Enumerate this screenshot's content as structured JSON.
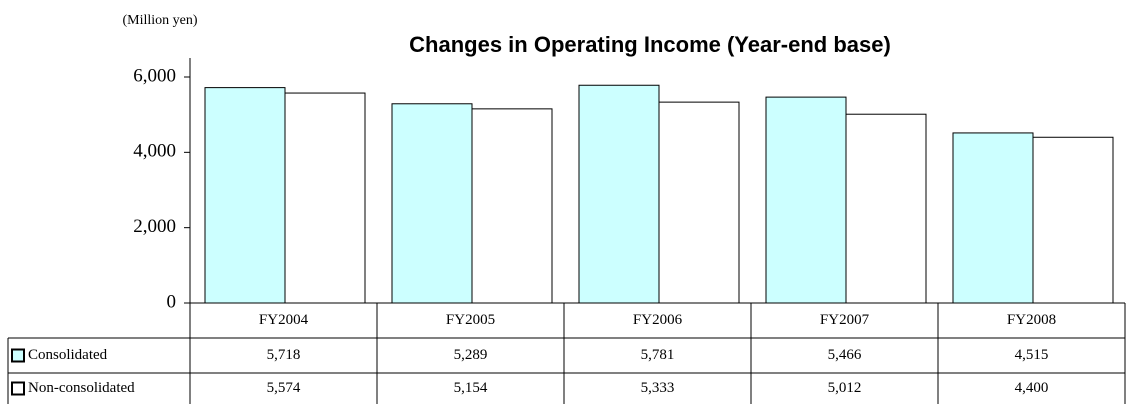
{
  "chart_data": {
    "type": "bar",
    "title": "Changes in Operating Income (Year-end base)",
    "y_axis_label": "(Million yen)",
    "categories": [
      "FY2004",
      "FY2005",
      "FY2006",
      "FY2007",
      "FY2008"
    ],
    "series": [
      {
        "name": "Consolidated",
        "color": "#ccffff",
        "values": [
          5718,
          5289,
          5781,
          5466,
          4515
        ],
        "value_labels": [
          "5,718",
          "5,289",
          "5,781",
          "5,466",
          "4,515"
        ]
      },
      {
        "name": "Non-consolidated",
        "color": "#ffffff",
        "values": [
          5574,
          5154,
          5333,
          5012,
          4400
        ],
        "value_labels": [
          "5,574",
          "5,154",
          "5,333",
          "5,012",
          "4,400"
        ]
      }
    ],
    "ylim": [
      0,
      6000
    ],
    "yticks": [
      0,
      {
        "value": 2000,
        "label": "2,000"
      },
      {
        "value": 4000,
        "label": "4,000"
      },
      {
        "value": 6000,
        "label": "6,000"
      }
    ],
    "grid": false
  }
}
